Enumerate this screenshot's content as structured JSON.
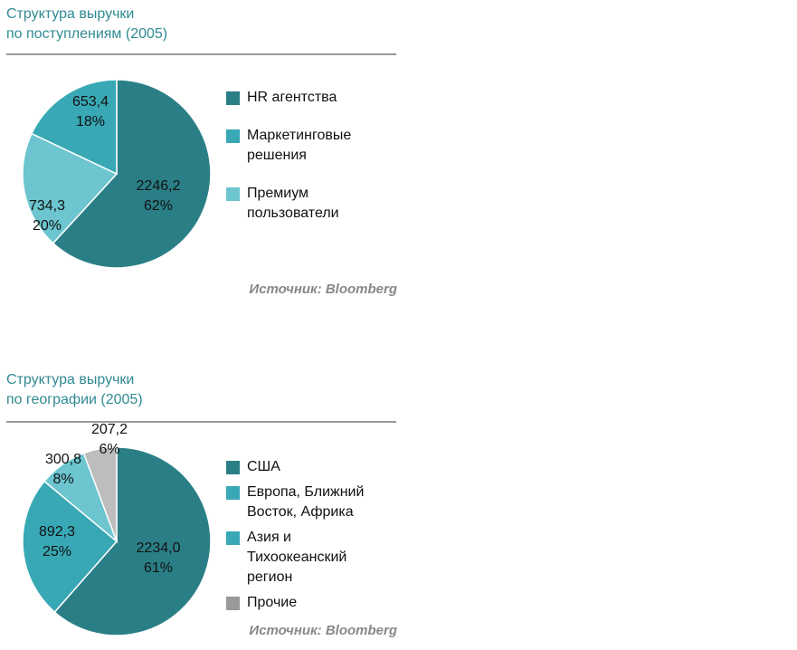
{
  "chart_data": [
    {
      "type": "pie",
      "title": "Структура выручки\nпо поступлениям (2005)",
      "title_lines": [
        "Структура выручки",
        "по поступлениям (2005)"
      ],
      "slices": [
        {
          "name": "HR агентства",
          "label_lines": [
            "HR агентства"
          ],
          "value": "2246,2",
          "num": 2246.2,
          "percent": "62%",
          "color": "#2a7f87"
        },
        {
          "name": "Премиум пользователи",
          "label_lines": [
            "Премиум",
            "пользователи"
          ],
          "value": "734,3",
          "num": 734.3,
          "percent": "20%",
          "color": "#6cc5cf"
        },
        {
          "name": "Маркетинговые решения",
          "label_lines": [
            "Маркетинговые",
            "решения"
          ],
          "value": "653,4",
          "num": 653.4,
          "percent": "18%",
          "color": "#38a8b5"
        }
      ],
      "legend_order": [
        0,
        2,
        1
      ],
      "source": "Источник: Bloomberg",
      "legend": "right"
    },
    {
      "type": "pie",
      "title": "Структура выручки\nпо географии (2005)",
      "title_lines": [
        "Структура выручки",
        "по географии (2005)"
      ],
      "slices": [
        {
          "name": "США",
          "label_lines": [
            "США"
          ],
          "value": "2234,0",
          "num": 2234.0,
          "percent": "61%",
          "color": "#2a7f87"
        },
        {
          "name": "Европа, Ближний Восток, Африка",
          "label_lines": [
            "Европа, Ближний",
            "Восток, Африка"
          ],
          "value": "892,3",
          "num": 892.3,
          "percent": "25%",
          "color": "#38a8b5"
        },
        {
          "name": "Азия и Тихоокеанский регион",
          "label_lines": [
            "Азия и",
            "Тихоокеанский",
            "регион"
          ],
          "value": "300,8",
          "num": 300.8,
          "percent": "8%",
          "color": "#6cc5cf",
          "legend_color": "#38a8b5"
        },
        {
          "name": "Прочие",
          "label_lines": [
            "Прочие"
          ],
          "value": "207,2",
          "num": 207.2,
          "percent": "6%",
          "color": "#bdbdbd",
          "legend_color": "#999999"
        }
      ],
      "legend_order": [
        0,
        1,
        2,
        3
      ],
      "source": "Источник: Bloomberg",
      "legend": "right"
    }
  ]
}
